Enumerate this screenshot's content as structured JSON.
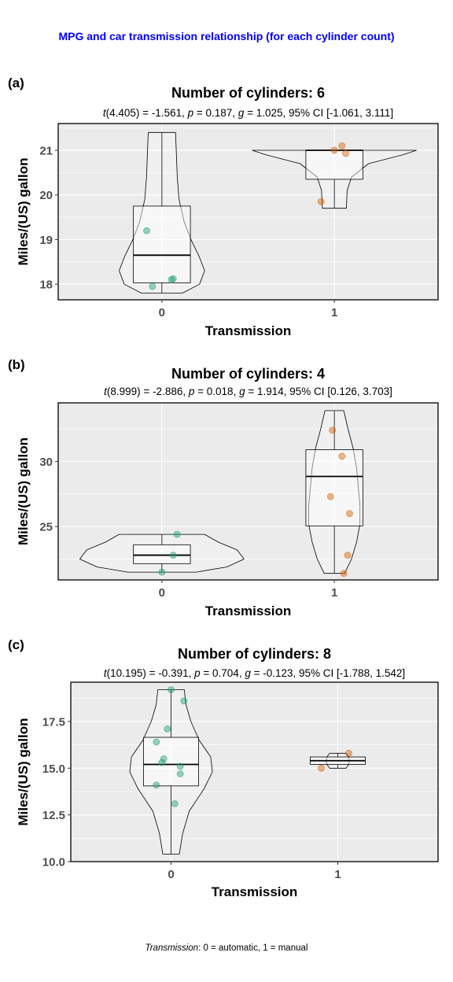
{
  "figure": {
    "title": "MPG and car transmission relationship (for each cylinder count)",
    "caption_var": "Transmission",
    "caption_rest": ": 0 = automatic, 1 = manual",
    "title_color": "#0000ff"
  },
  "colors": {
    "group0": "#1b9e77",
    "group1": "#d95f02",
    "panel_bg": "#ebebeb",
    "grid": "#ffffff"
  },
  "chart_data": [
    {
      "tag": "(a)",
      "type": "violin-box",
      "title": "Number of cylinders: 6",
      "subtitle": {
        "df": "4.405",
        "t": "-1.561",
        "p": "0.187",
        "g": "1.025",
        "ci": "[-1.061, 3.111]"
      },
      "xlabel": "Transmission",
      "ylabel": "Miles/(US) gallon",
      "categories": [
        "0",
        "1"
      ],
      "ylim": [
        17.65,
        21.6
      ],
      "yticks": [
        18,
        19,
        20,
        21
      ],
      "series": [
        {
          "category": "0",
          "points": [
            18.1,
            19.2,
            17.95,
            18.12
          ],
          "jitter": [
            0.05,
            -0.08,
            -0.05,
            0.06
          ],
          "box": [
            17.8,
            18.03,
            18.65,
            19.75,
            21.4
          ],
          "ymin": 17.8,
          "ymax": 21.4,
          "density": [
            [
              17.8,
              0.12
            ],
            [
              18.0,
              0.22
            ],
            [
              18.3,
              0.25
            ],
            [
              18.6,
              0.22
            ],
            [
              19.0,
              0.17
            ],
            [
              19.4,
              0.13
            ],
            [
              19.9,
              0.1
            ],
            [
              20.4,
              0.09
            ],
            [
              20.9,
              0.085
            ],
            [
              21.4,
              0.08
            ]
          ]
        },
        {
          "category": "1",
          "points": [
            21.0,
            21.1,
            19.85,
            20.93
          ],
          "jitter": [
            0.0,
            0.04,
            -0.07,
            0.06
          ],
          "box": [
            19.7,
            20.35,
            21.0,
            21.0,
            21.0
          ],
          "ymin": 19.7,
          "ymax": 21.0,
          "density": [
            [
              19.7,
              0.07
            ],
            [
              20.1,
              0.075
            ],
            [
              20.4,
              0.1
            ],
            [
              20.7,
              0.2
            ],
            [
              20.9,
              0.4
            ],
            [
              21.0,
              0.48
            ]
          ]
        }
      ]
    },
    {
      "tag": "(b)",
      "type": "violin-box",
      "title": "Number of cylinders: 4",
      "subtitle": {
        "df": "8.999",
        "t": "-2.886",
        "p": "0.018",
        "g": "1.914",
        "ci": "[0.126, 3.703]"
      },
      "xlabel": "Transmission",
      "ylabel": "Miles/(US) gallon",
      "categories": [
        "0",
        "1"
      ],
      "ylim": [
        20.9,
        34.5
      ],
      "yticks": [
        25,
        30
      ],
      "series": [
        {
          "category": "0",
          "points": [
            24.4,
            22.8,
            21.5
          ],
          "jitter": [
            0.08,
            0.06,
            0.0
          ],
          "box": [
            21.5,
            22.15,
            22.8,
            23.6,
            24.4
          ],
          "ymin": 21.5,
          "ymax": 24.4,
          "density": [
            [
              21.5,
              0.2
            ],
            [
              21.9,
              0.38
            ],
            [
              22.5,
              0.48
            ],
            [
              23.2,
              0.44
            ],
            [
              23.8,
              0.33
            ],
            [
              24.4,
              0.25
            ]
          ]
        },
        {
          "category": "1",
          "points": [
            32.4,
            30.4,
            27.3,
            26.0,
            22.8,
            21.4
          ],
          "jitter": [
            -0.01,
            0.04,
            -0.02,
            0.08,
            0.07,
            0.05
          ],
          "box": [
            21.4,
            25.05,
            28.85,
            30.9,
            33.9
          ],
          "ymin": 21.4,
          "ymax": 33.9,
          "density": [
            [
              21.4,
              0.06
            ],
            [
              22.5,
              0.1
            ],
            [
              23.8,
              0.13
            ],
            [
              25.2,
              0.15
            ],
            [
              26.6,
              0.15
            ],
            [
              28.0,
              0.14
            ],
            [
              29.5,
              0.13
            ],
            [
              31.0,
              0.11
            ],
            [
              32.5,
              0.08
            ],
            [
              33.9,
              0.055
            ]
          ]
        }
      ]
    },
    {
      "tag": "(c)",
      "type": "violin-box",
      "title": "Number of cylinders: 8",
      "subtitle": {
        "df": "10.195",
        "t": "-0.391",
        "p": "0.704",
        "g": "-0.123",
        "ci": "[-1.788, 1.542]"
      },
      "xlabel": "Transmission",
      "ylabel": "Miles/(US) gallon",
      "categories": [
        "0",
        "1"
      ],
      "ylim": [
        10.0,
        19.6
      ],
      "yticks": [
        10.0,
        12.5,
        15.0,
        17.5
      ],
      "xtick_labels": [
        "0",
        "1"
      ],
      "ytick_labels": [
        "10.0",
        "12.5",
        "15.0",
        "17.5"
      ],
      "series": [
        {
          "category": "0",
          "points": [
            19.2,
            18.6,
            17.1,
            16.4,
            15.5,
            15.3,
            15.1,
            14.7,
            14.1,
            13.1
          ],
          "jitter": [
            0.0,
            0.07,
            -0.02,
            -0.08,
            -0.04,
            -0.05,
            0.05,
            0.05,
            -0.08,
            0.02
          ],
          "box": [
            10.4,
            14.05,
            15.2,
            16.65,
            19.2
          ],
          "ymin": 10.4,
          "ymax": 19.2,
          "density": [
            [
              10.4,
              0.05
            ],
            [
              11.5,
              0.07
            ],
            [
              12.7,
              0.11
            ],
            [
              13.9,
              0.2
            ],
            [
              14.8,
              0.25
            ],
            [
              15.6,
              0.24
            ],
            [
              16.5,
              0.17
            ],
            [
              17.5,
              0.12
            ],
            [
              18.4,
              0.09
            ],
            [
              19.2,
              0.08
            ]
          ]
        },
        {
          "category": "1",
          "points": [
            15.8,
            15.0
          ],
          "jitter": [
            0.06,
            -0.09
          ],
          "box": [
            15.0,
            15.2,
            15.4,
            15.6,
            15.8
          ],
          "ymin": 15.0,
          "ymax": 15.8,
          "density": [
            [
              15.0,
              0.05
            ],
            [
              15.2,
              0.065
            ],
            [
              15.4,
              0.07
            ],
            [
              15.6,
              0.065
            ],
            [
              15.8,
              0.05
            ]
          ]
        }
      ]
    }
  ]
}
